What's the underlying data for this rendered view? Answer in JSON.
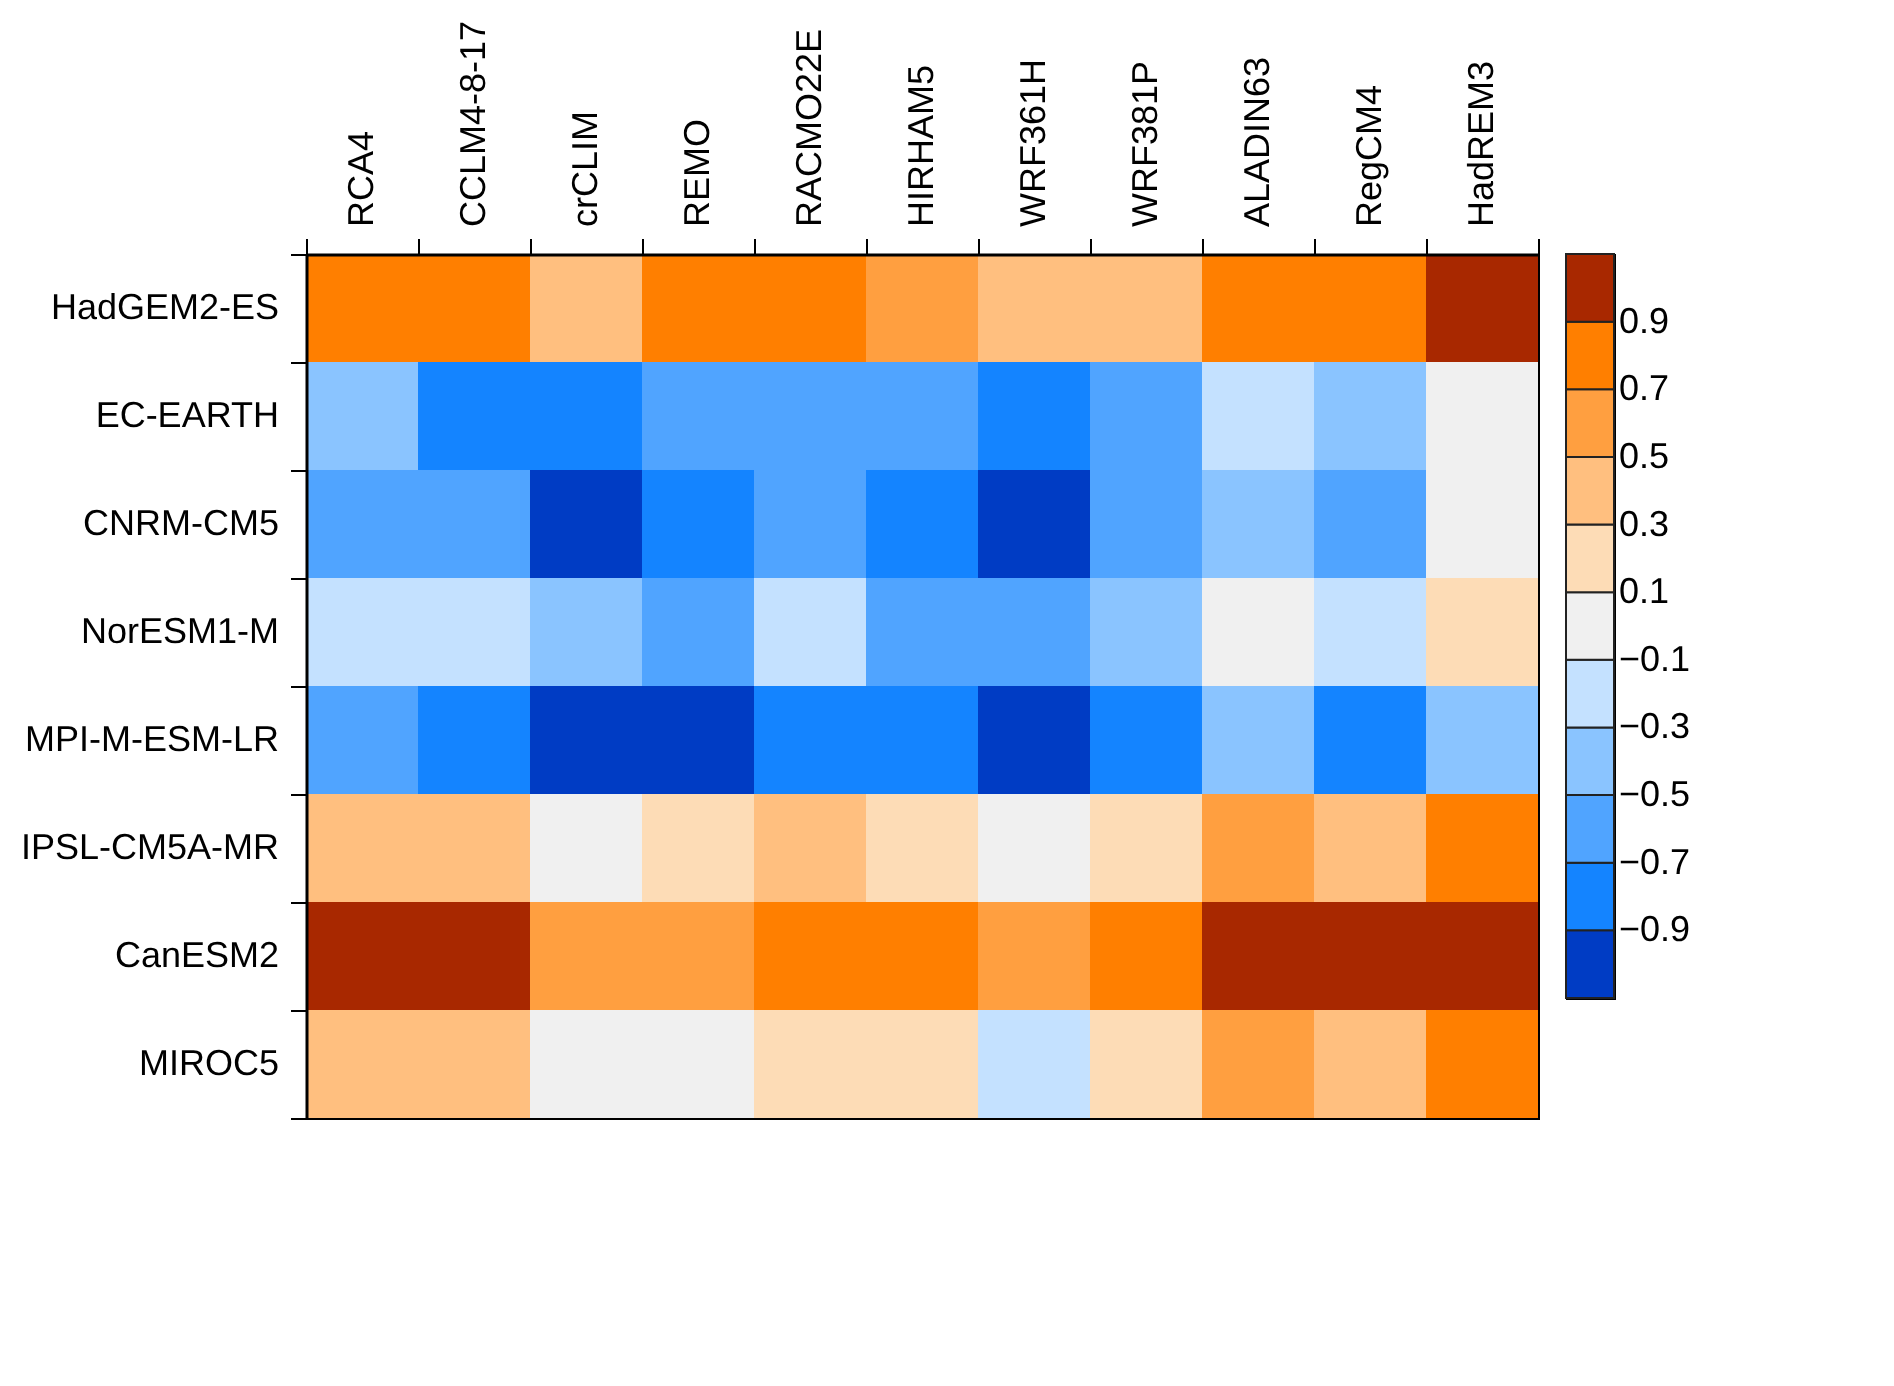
{
  "chart_data": {
    "type": "heatmap",
    "categories": [
      "RCA4",
      "CCLM4-8-17",
      "crCLIM",
      "REMO",
      "RACMO22E",
      "HIRHAM5",
      "WRF361H",
      "WRF381P",
      "ALADIN63",
      "RegCM4",
      "HadREM3"
    ],
    "y_categories": [
      "HadGEM2-ES",
      "EC-EARTH",
      "CNRM-CM5",
      "NorESM1-M",
      "MPI-M-ESM-LR",
      "IPSL-CM5A-MR",
      "CanESM2",
      "MIROC5"
    ],
    "cells": [
      [
        0.8,
        0.8,
        0.4,
        0.8,
        0.8,
        0.6,
        0.4,
        0.4,
        0.8,
        0.8,
        1.0
      ],
      [
        -0.4,
        -0.8,
        -0.8,
        -0.6,
        -0.6,
        -0.6,
        -0.8,
        -0.6,
        -0.2,
        -0.4,
        0
      ],
      [
        -0.6,
        -0.6,
        -1.0,
        -0.8,
        -0.6,
        -0.8,
        -1.0,
        -0.6,
        -0.4,
        -0.6,
        0
      ],
      [
        -0.2,
        -0.2,
        -0.4,
        -0.6,
        -0.2,
        -0.6,
        -0.6,
        -0.4,
        0,
        -0.2,
        0.2
      ],
      [
        -0.6,
        -0.8,
        -1.0,
        -1.0,
        -0.8,
        -0.8,
        -1.0,
        -0.8,
        -0.4,
        -0.8,
        -0.4
      ],
      [
        0.4,
        0.4,
        0,
        0.2,
        0.4,
        0.2,
        0,
        0.2,
        0.6,
        0.4,
        0.8
      ],
      [
        1.0,
        1.0,
        0.6,
        0.6,
        0.8,
        0.8,
        0.6,
        0.8,
        1.0,
        1.0,
        1.0
      ],
      [
        0.4,
        0.4,
        0,
        0,
        0.2,
        0.2,
        -0.2,
        0.2,
        0.6,
        0.4,
        0.8
      ]
    ],
    "clim": [
      -1.1,
      1.1
    ],
    "cticks": [
      -0.9,
      -0.7,
      -0.5,
      -0.3,
      -0.1,
      0.1,
      0.3,
      0.5,
      0.7,
      0.9
    ],
    "colors": [
      "#003cc4",
      "#1484ff",
      "#50a4ff",
      "#8ac4ff",
      "#c4e1ff",
      "#f0f0f0",
      "#fddcb6",
      "#ffbf7f",
      "#ff9f40",
      "#ff7f00",
      "#a82800"
    ]
  }
}
